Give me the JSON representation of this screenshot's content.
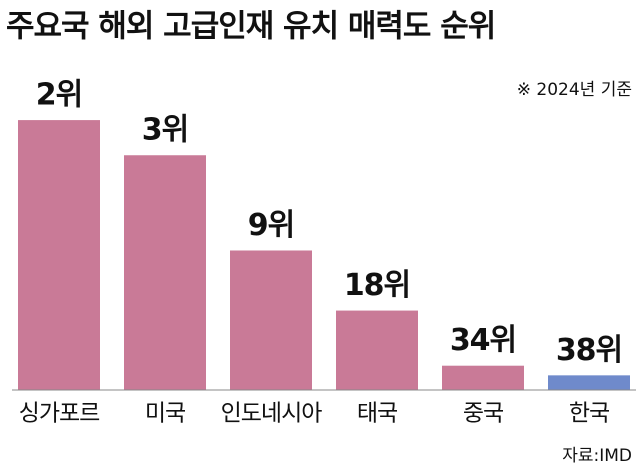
{
  "chart_data": {
    "type": "bar",
    "title": "주요국 해외 고급인재 유치 매력도 순위",
    "subtitle": "※ 2024년 기준",
    "source": "자료:IMD",
    "categories": [
      "싱가포르",
      "미국",
      "인도네시아",
      "태국",
      "중국",
      "한국"
    ],
    "values": [
      2,
      3,
      9,
      18,
      34,
      38
    ],
    "value_labels": [
      "2위",
      "3위",
      "9위",
      "18위",
      "34위",
      "38위"
    ],
    "colors": [
      "#c97a97",
      "#c97a97",
      "#c97a97",
      "#c97a97",
      "#c97a97",
      "#6f8acb"
    ],
    "ylim": [
      45,
      1
    ],
    "log_scale": true
  }
}
